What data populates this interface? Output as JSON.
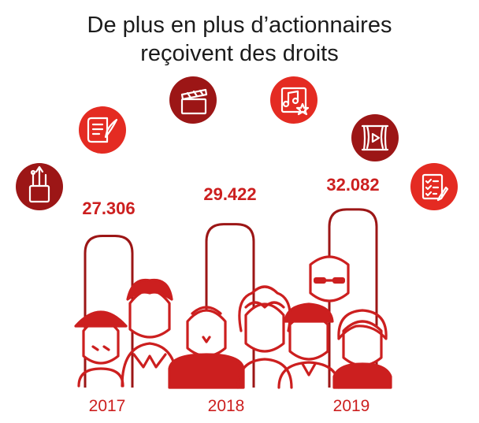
{
  "title": {
    "line1": "De plus en plus d’actionnaires",
    "line2": "reçoivent des droits"
  },
  "colors": {
    "accent": "#cc1f1f",
    "dark": "#9c1616",
    "text": "#1b1b1b"
  },
  "icons": [
    "art-supplies-icon",
    "manuscript-quill-icon",
    "clapperboard-icon",
    "music-star-icon",
    "theater-stage-icon",
    "checklist-pen-icon"
  ],
  "chart_data": {
    "type": "bar",
    "title": "De plus en plus d’actionnaires reçoivent des droits",
    "categories": [
      "2017",
      "2018",
      "2019"
    ],
    "values": [
      27306,
      29422,
      32082
    ],
    "value_labels": [
      "27.306",
      "29.422",
      "32.082"
    ],
    "ylim": [
      0,
      35000
    ],
    "grid": false,
    "xlabel": "",
    "ylabel": ""
  }
}
